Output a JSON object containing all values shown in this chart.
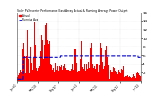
{
  "title": "Solar PV/Inverter Performance East Array Actual & Running Average Power Output",
  "bg_color": "#ffffff",
  "plot_bg": "#ffffff",
  "grid_color": "#aaaaaa",
  "bar_color": "#ff0000",
  "avg_color": "#0000cc",
  "avg_linewidth": 0.8,
  "ylim": [
    0,
    16
  ],
  "yticks": [
    2,
    4,
    6,
    8,
    10,
    12,
    14,
    16
  ],
  "n_bars": 400,
  "seed": 12,
  "legend_bar_label": "Actual",
  "legend_avg_label": "Running Avg",
  "xlabel_dates": [
    "Jan'10",
    "May'10",
    "Sep'10",
    "Jan'11",
    "May'11",
    "Sep'11",
    "Jan'12"
  ]
}
